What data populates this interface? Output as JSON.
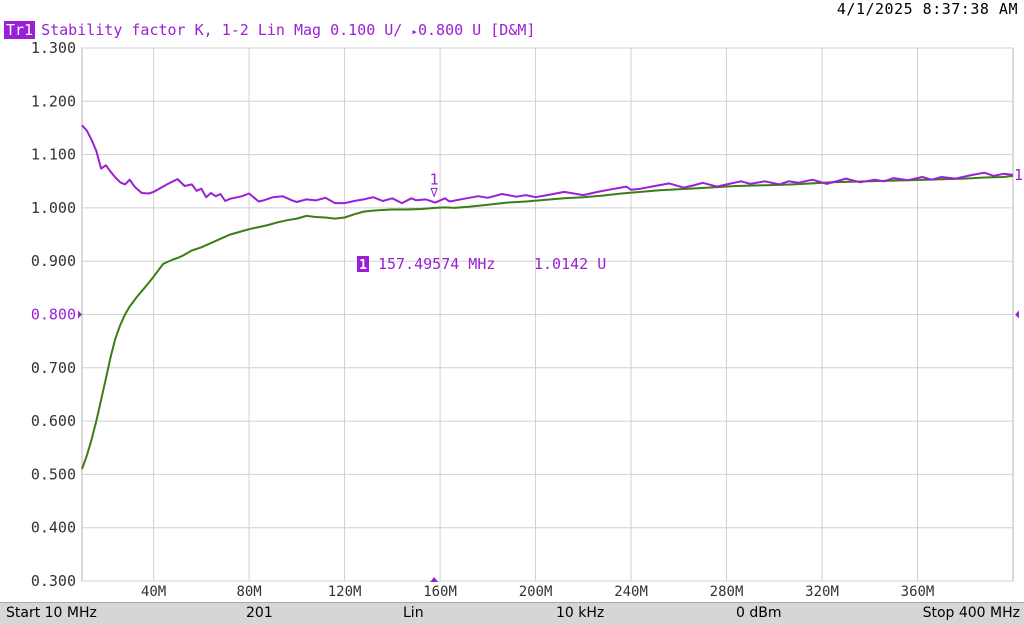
{
  "timestamp": "4/1/2025 8:37:38 AM",
  "trace": {
    "badge": "Tr1",
    "description": "Stability factor K, 1-2 Lin Mag 0.100 U/",
    "reference": "0.800 U [D&M]",
    "color": "#9b1fd6"
  },
  "marker": {
    "number": "1",
    "frequency": "157.49574 MHz",
    "value": "1.0142 U",
    "x": 157.5,
    "y": 1.0142
  },
  "status_bar": {
    "start": "Start 10 MHz",
    "points": "201",
    "sweep_type": "Lin",
    "if_bandwidth": "10 kHz",
    "power": "0 dBm",
    "stop": "Stop 400 MHz"
  },
  "chart_data": {
    "type": "line",
    "y_tick_labels": [
      "1.300",
      "1.200",
      "1.100",
      "1.000",
      "0.900",
      "0.800",
      "0.700",
      "0.600",
      "0.500",
      "0.400",
      "0.300"
    ],
    "y_ticks": [
      1.3,
      1.2,
      1.1,
      1.0,
      0.9,
      0.8,
      0.7,
      0.6,
      0.5,
      0.4,
      0.3
    ],
    "x_tick_labels": [
      "40M",
      "80M",
      "120M",
      "160M",
      "200M",
      "240M",
      "280M",
      "320M",
      "360M"
    ],
    "x_ticks": [
      40,
      80,
      120,
      160,
      200,
      240,
      280,
      320,
      360
    ],
    "xlim": [
      10,
      400
    ],
    "ylim": [
      0.3,
      1.3
    ],
    "reference_level": 0.8,
    "grid": true,
    "series": [
      {
        "color": "#9b1fd6",
        "x": [
          10,
          12,
          14,
          16,
          18,
          20,
          22,
          24,
          26,
          28,
          30,
          32,
          35,
          38,
          40,
          42,
          46,
          50,
          53,
          56,
          58,
          60,
          62,
          64,
          66,
          68,
          70,
          72,
          74,
          77,
          80,
          84,
          86,
          90,
          94,
          98,
          100,
          104,
          108,
          112,
          116,
          120,
          124,
          128,
          132,
          136,
          140,
          144,
          148,
          150,
          154,
          158,
          162,
          164,
          170,
          176,
          180,
          186,
          192,
          196,
          200,
          206,
          212,
          216,
          220,
          226,
          232,
          238,
          240,
          244,
          250,
          256,
          262,
          266,
          270,
          276,
          282,
          286,
          290,
          296,
          302,
          306,
          310,
          316,
          322,
          326,
          330,
          336,
          342,
          346,
          350,
          356,
          362,
          366,
          370,
          376,
          382,
          388,
          392,
          396,
          400
        ],
        "y": [
          1.155,
          1.145,
          1.128,
          1.107,
          1.074,
          1.08,
          1.068,
          1.057,
          1.048,
          1.044,
          1.053,
          1.04,
          1.028,
          1.027,
          1.03,
          1.035,
          1.045,
          1.054,
          1.041,
          1.044,
          1.032,
          1.036,
          1.02,
          1.028,
          1.022,
          1.026,
          1.013,
          1.017,
          1.019,
          1.022,
          1.027,
          1.012,
          1.014,
          1.02,
          1.022,
          1.014,
          1.011,
          1.016,
          1.014,
          1.019,
          1.009,
          1.009,
          1.013,
          1.016,
          1.02,
          1.013,
          1.018,
          1.009,
          1.018,
          1.0142,
          1.016,
          1.01,
          1.018,
          1.012,
          1.017,
          1.022,
          1.019,
          1.026,
          1.021,
          1.024,
          1.02,
          1.025,
          1.03,
          1.027,
          1.024,
          1.03,
          1.035,
          1.04,
          1.034,
          1.036,
          1.041,
          1.046,
          1.038,
          1.042,
          1.047,
          1.04,
          1.046,
          1.05,
          1.045,
          1.05,
          1.044,
          1.05,
          1.047,
          1.053,
          1.045,
          1.05,
          1.055,
          1.048,
          1.053,
          1.05,
          1.056,
          1.052,
          1.058,
          1.053,
          1.058,
          1.055,
          1.061,
          1.066,
          1.06,
          1.064,
          1.062
        ]
      },
      {
        "color": "#3c7d16",
        "x": [
          10,
          12,
          14,
          16,
          18,
          20,
          22,
          24,
          26,
          28,
          30,
          33,
          36,
          40,
          44,
          48,
          50,
          52,
          54,
          56,
          60,
          64,
          68,
          72,
          76,
          80,
          84,
          88,
          92,
          96,
          100,
          104,
          108,
          112,
          116,
          120,
          124,
          128,
          132,
          136,
          140,
          146,
          152,
          158,
          162,
          166,
          172,
          180,
          188,
          196,
          204,
          212,
          220,
          228,
          236,
          244,
          252,
          260,
          268,
          276,
          284,
          292,
          300,
          308,
          316,
          324,
          332,
          340,
          348,
          356,
          364,
          372,
          380,
          388,
          396,
          400
        ],
        "y": [
          0.51,
          0.535,
          0.565,
          0.6,
          0.64,
          0.68,
          0.72,
          0.755,
          0.78,
          0.8,
          0.815,
          0.833,
          0.849,
          0.871,
          0.895,
          0.903,
          0.906,
          0.91,
          0.915,
          0.92,
          0.926,
          0.934,
          0.942,
          0.95,
          0.955,
          0.96,
          0.964,
          0.968,
          0.973,
          0.977,
          0.98,
          0.985,
          0.983,
          0.982,
          0.98,
          0.982,
          0.988,
          0.993,
          0.995,
          0.996,
          0.997,
          0.997,
          0.998,
          1.0,
          1.001,
          1.0,
          1.002,
          1.006,
          1.01,
          1.012,
          1.015,
          1.018,
          1.02,
          1.023,
          1.027,
          1.03,
          1.033,
          1.035,
          1.037,
          1.039,
          1.041,
          1.042,
          1.043,
          1.044,
          1.046,
          1.048,
          1.049,
          1.05,
          1.051,
          1.052,
          1.053,
          1.054,
          1.055,
          1.057,
          1.058,
          1.06
        ]
      }
    ]
  }
}
